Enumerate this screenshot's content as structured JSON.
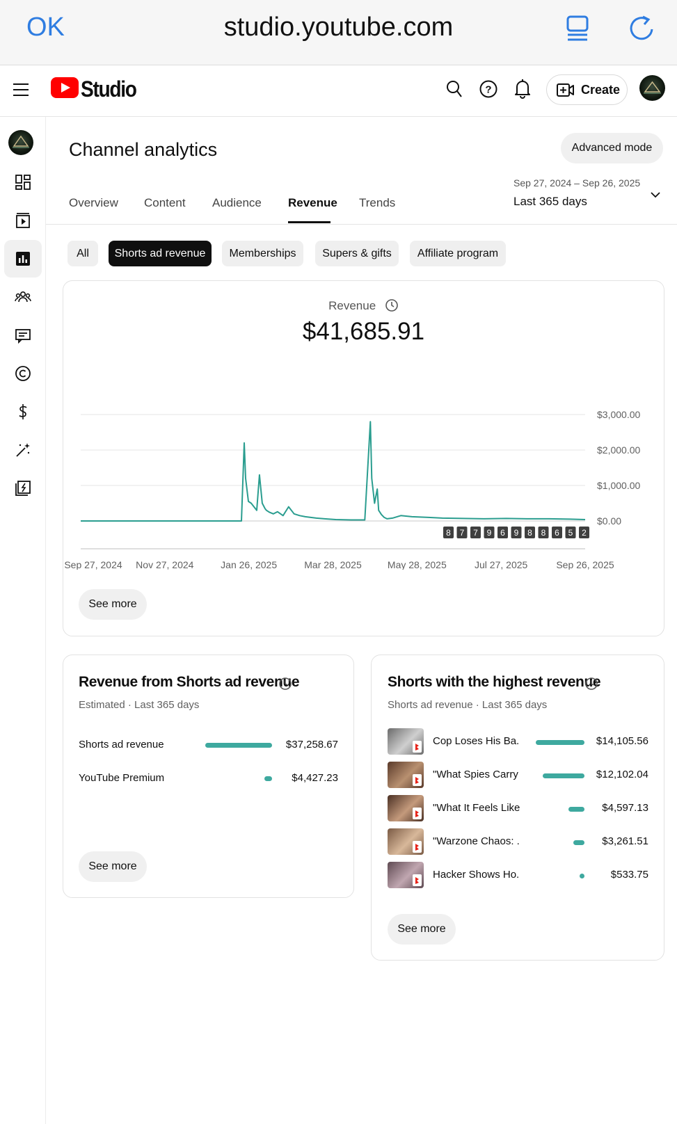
{
  "browser": {
    "done_label": "OK",
    "url": "studio.youtube.com"
  },
  "header": {
    "logo_text": "Studio",
    "create_label": "Create"
  },
  "page": {
    "title": "Channel analytics",
    "advanced_mode_label": "Advanced mode",
    "date_range": "Sep 27, 2024 – Sep 26, 2025",
    "date_preset": "Last 365 days"
  },
  "tabs": [
    {
      "label": "Overview"
    },
    {
      "label": "Content"
    },
    {
      "label": "Audience"
    },
    {
      "label": "Revenue",
      "active": true
    },
    {
      "label": "Trends"
    }
  ],
  "chips": [
    {
      "label": "All"
    },
    {
      "label": "Shorts ad revenue",
      "active": true
    },
    {
      "label": "Memberships"
    },
    {
      "label": "Supers & gifts"
    },
    {
      "label": "Affiliate program"
    }
  ],
  "revenue_card": {
    "label": "Revenue",
    "value": "$41,685.91",
    "see_more": "See more"
  },
  "chart_data": {
    "type": "line",
    "title": "",
    "xlabel": "",
    "ylabel": "",
    "x_tick_labels": [
      "Sep 27, 2024",
      "Nov 27, 2024",
      "Jan 26, 2025",
      "Mar 28, 2025",
      "May 28, 2025",
      "Jul 27, 2025",
      "Sep 26, 2025"
    ],
    "y_tick_labels": [
      "$0.00",
      "$1,000.00",
      "$2,000.00",
      "$3,000.00"
    ],
    "ylim": [
      0,
      3000
    ],
    "xlim": [
      "2024-09-27",
      "2025-09-26"
    ],
    "grid": true,
    "color": "#2a9d8f",
    "series": [
      {
        "x": [
          "2024-09-27",
          "2025-01-21",
          "2025-01-23",
          "2025-01-24",
          "2025-01-26",
          "2025-01-28",
          "2025-02-01",
          "2025-02-03",
          "2025-02-05",
          "2025-02-07",
          "2025-02-08",
          "2025-02-10",
          "2025-02-13",
          "2025-02-16",
          "2025-02-20",
          "2025-02-24",
          "2025-02-28",
          "2025-03-04",
          "2025-03-08",
          "2025-03-12",
          "2025-03-16",
          "2025-03-22",
          "2025-03-30",
          "2025-04-10",
          "2025-04-20",
          "2025-04-24",
          "2025-04-25",
          "2025-04-27",
          "2025-04-29",
          "2025-04-30",
          "2025-05-02",
          "2025-05-04",
          "2025-05-06",
          "2025-05-10",
          "2025-05-16",
          "2025-05-24",
          "2025-06-05",
          "2025-06-15",
          "2025-06-30",
          "2025-07-15",
          "2025-07-31",
          "2025-08-15",
          "2025-08-31",
          "2025-09-15",
          "2025-09-26"
        ],
        "y": [
          0,
          0,
          2200,
          1200,
          550,
          500,
          300,
          1300,
          500,
          350,
          300,
          250,
          200,
          260,
          150,
          400,
          200,
          150,
          120,
          100,
          80,
          60,
          40,
          30,
          30,
          2800,
          1200,
          500,
          900,
          300,
          180,
          100,
          60,
          80,
          150,
          120,
          100,
          80,
          70,
          60,
          70,
          60,
          60,
          50,
          40
        ]
      }
    ]
  },
  "chart_badges": [
    "8",
    "7",
    "7",
    "9",
    "6",
    "9",
    "8",
    "8",
    "6",
    "5",
    "2"
  ],
  "sources_card": {
    "title": "Revenue from Shorts ad revenue",
    "subtitle": "Estimated · Last 365 days",
    "rows": [
      {
        "label": "Shorts ad revenue",
        "value": "$37,258.67",
        "share": 0.894
      },
      {
        "label": "YouTube Premium",
        "value": "$4,427.23",
        "share": 0.106
      }
    ],
    "see_more": "See more"
  },
  "shorts_card": {
    "title": "Shorts with the highest revenue",
    "subtitle": "Shorts ad revenue · Last 365 days",
    "rows": [
      {
        "title": "Cop Loses His Ba...",
        "value": "$14,105.56",
        "amount": 14105.56
      },
      {
        "title": "\"What Spies Carry ...",
        "value": "$12,102.04",
        "amount": 12102.04
      },
      {
        "title": "\"What It Feels Like...",
        "value": "$4,597.13",
        "amount": 4597.13
      },
      {
        "title": "\"Warzone Chaos: ...",
        "value": "$3,261.51",
        "amount": 3261.51
      },
      {
        "title": "Hacker Shows Ho...",
        "value": "$533.75",
        "amount": 533.75
      }
    ],
    "see_more": "See more"
  }
}
